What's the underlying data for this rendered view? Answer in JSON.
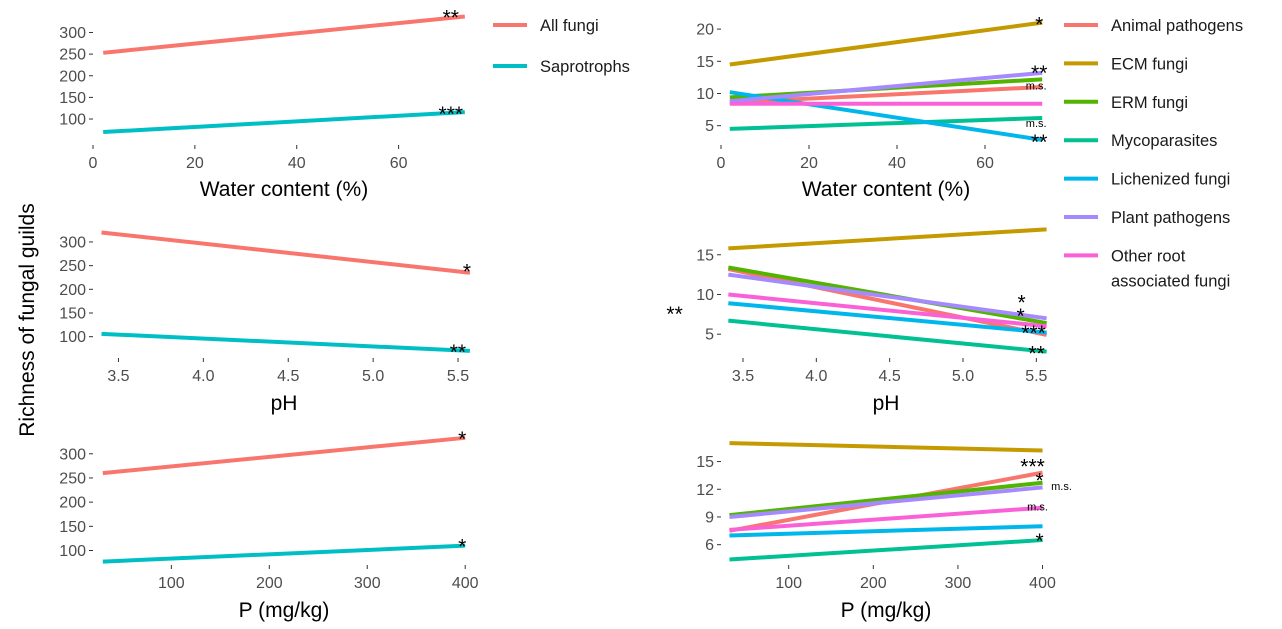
{
  "ylabel_shared": "Richness of fungal guilds",
  "colors": {
    "all_fungi": "#F8766D",
    "saprotrophs": "#00BFC4",
    "animal_pathogens": "#F8766D",
    "ecm": "#C49A00",
    "erm": "#53B400",
    "mycoparasites": "#00C094",
    "lichenized": "#00B6EB",
    "plant_pathogens": "#A58AFF",
    "other_root": "#FB61D7"
  },
  "legend_left": [
    {
      "label": "All fungi",
      "color": "#F8766D"
    },
    {
      "label": "Saprotrophs",
      "color": "#00BFC4"
    }
  ],
  "legend_right": [
    {
      "label": "Animal pathogens",
      "color": "#F8766D"
    },
    {
      "label": "ECM fungi",
      "color": "#C49A00"
    },
    {
      "label": "ERM fungi",
      "color": "#53B400"
    },
    {
      "label": "Mycoparasites",
      "color": "#00C094"
    },
    {
      "label": "Lichenized fungi",
      "color": "#00B6EB"
    },
    {
      "label": "Plant pathogens",
      "color": "#A58AFF"
    },
    {
      "label": "Other root",
      "label2": "associated fungi",
      "color": "#FB61D7"
    }
  ],
  "chart_data": [
    {
      "type": "line",
      "panel": "left-top",
      "xlabel": "Water content (%)",
      "xlim": [
        0,
        75
      ],
      "ylim": [
        40,
        345
      ],
      "xticks": [
        0,
        20,
        40,
        60
      ],
      "yticks": [
        100,
        150,
        200,
        250,
        300
      ],
      "series": [
        {
          "name": "All fungi",
          "color": "#F8766D",
          "x": [
            2,
            73
          ],
          "y": [
            253,
            337
          ],
          "sig": "**"
        },
        {
          "name": "Saprotrophs",
          "color": "#00BFC4",
          "x": [
            2,
            73
          ],
          "y": [
            70,
            116
          ],
          "sig": "***"
        }
      ]
    },
    {
      "type": "line",
      "panel": "right-top",
      "xlabel": "Water content (%)",
      "xlim": [
        0,
        75
      ],
      "ylim": [
        2,
        22.5
      ],
      "xticks": [
        0,
        20,
        40,
        60
      ],
      "yticks": [
        5,
        10,
        15,
        20
      ],
      "series": [
        {
          "name": "Animal pathogens",
          "color": "#F8766D",
          "x": [
            2,
            73
          ],
          "y": [
            8.6,
            11.0
          ],
          "sig": ""
        },
        {
          "name": "ECM fungi",
          "color": "#C49A00",
          "x": [
            2,
            73
          ],
          "y": [
            14.5,
            21.0
          ],
          "sig": "*"
        },
        {
          "name": "ERM fungi",
          "color": "#53B400",
          "x": [
            2,
            73
          ],
          "y": [
            9.4,
            12.2
          ],
          "sig": "m.s."
        },
        {
          "name": "Mycoparasites",
          "color": "#00C094",
          "x": [
            2,
            73
          ],
          "y": [
            4.5,
            6.2
          ],
          "sig": "m.s."
        },
        {
          "name": "Lichenized fungi",
          "color": "#00B6EB",
          "x": [
            2,
            73
          ],
          "y": [
            10.2,
            2.8
          ],
          "sig": "**"
        },
        {
          "name": "Plant pathogens",
          "color": "#A58AFF",
          "x": [
            2,
            73
          ],
          "y": [
            8.8,
            13.2
          ],
          "sig": "**"
        },
        {
          "name": "Other root associated fungi",
          "color": "#FB61D7",
          "x": [
            2,
            73
          ],
          "y": [
            8.4,
            8.4
          ],
          "sig": ""
        }
      ]
    },
    {
      "type": "line",
      "panel": "left-middle",
      "xlabel": "pH",
      "xlim": [
        3.35,
        5.6
      ],
      "ylim": [
        55,
        340
      ],
      "xticks": [
        3.5,
        4.0,
        4.5,
        5.0,
        5.5
      ],
      "yticks": [
        100,
        150,
        200,
        250,
        300
      ],
      "series": [
        {
          "name": "All fungi",
          "color": "#F8766D",
          "x": [
            3.4,
            5.57
          ],
          "y": [
            320,
            235
          ],
          "sig": "*"
        },
        {
          "name": "Saprotrophs",
          "color": "#00BFC4",
          "x": [
            3.4,
            5.57
          ],
          "y": [
            106,
            70
          ],
          "sig": "**"
        }
      ]
    },
    {
      "type": "line",
      "panel": "right-middle",
      "xlabel": "pH",
      "xlim": [
        3.35,
        5.6
      ],
      "ylim": [
        2,
        19
      ],
      "xticks": [
        3.5,
        4.0,
        4.5,
        5.0,
        5.5
      ],
      "yticks": [
        5,
        10,
        15
      ],
      "series": [
        {
          "name": "Animal pathogens",
          "color": "#F8766D",
          "x": [
            3.4,
            5.57
          ],
          "y": [
            13.2,
            4.9
          ],
          "sig": "***"
        },
        {
          "name": "ECM fungi",
          "color": "#C49A00",
          "x": [
            3.4,
            5.57
          ],
          "y": [
            15.8,
            18.2
          ],
          "sig": ""
        },
        {
          "name": "ERM fungi",
          "color": "#53B400",
          "x": [
            3.4,
            5.57
          ],
          "y": [
            13.4,
            6.4
          ],
          "sig": "**"
        },
        {
          "name": "Mycoparasites",
          "color": "#00C094",
          "x": [
            3.4,
            5.57
          ],
          "y": [
            6.7,
            2.8
          ],
          "sig": "**"
        },
        {
          "name": "Lichenized fungi",
          "color": "#00B6EB",
          "x": [
            3.4,
            5.57
          ],
          "y": [
            8.9,
            5.2
          ],
          "sig": ""
        },
        {
          "name": "Plant pathogens",
          "color": "#A58AFF",
          "x": [
            3.4,
            5.57
          ],
          "y": [
            12.5,
            7.0
          ],
          "sig": "*"
        },
        {
          "name": "Other root associated fungi",
          "color": "#FB61D7",
          "x": [
            3.4,
            5.57
          ],
          "y": [
            10.0,
            6.0
          ],
          "sig": "*"
        }
      ]
    },
    {
      "type": "line",
      "panel": "left-bottom",
      "xlabel": "P (mg/kg)",
      "xlim": [
        20,
        410
      ],
      "ylim": [
        70,
        345
      ],
      "xticks": [
        100,
        200,
        300,
        400
      ],
      "yticks": [
        100,
        150,
        200,
        250,
        300
      ],
      "series": [
        {
          "name": "All fungi",
          "color": "#F8766D",
          "x": [
            30,
            400
          ],
          "y": [
            260,
            333
          ],
          "sig": "*"
        },
        {
          "name": "Saprotrophs",
          "color": "#00BFC4",
          "x": [
            30,
            400
          ],
          "y": [
            77,
            110
          ],
          "sig": "*"
        }
      ]
    },
    {
      "type": "line",
      "panel": "right-bottom",
      "xlabel": "P (mg/kg)",
      "xlim": [
        20,
        410
      ],
      "ylim": [
        3.8,
        18.2
      ],
      "xticks": [
        100,
        200,
        300,
        400
      ],
      "yticks": [
        6,
        9,
        12,
        15
      ],
      "series": [
        {
          "name": "Animal pathogens",
          "color": "#F8766D",
          "x": [
            30,
            400
          ],
          "y": [
            7.5,
            13.8
          ],
          "sig": "***"
        },
        {
          "name": "ECM fungi",
          "color": "#C49A00",
          "x": [
            30,
            400
          ],
          "y": [
            17.0,
            16.2
          ],
          "sig": ""
        },
        {
          "name": "ERM fungi",
          "color": "#53B400",
          "x": [
            30,
            400
          ],
          "y": [
            9.2,
            12.7
          ],
          "sig": "m.s."
        },
        {
          "name": "Mycoparasites",
          "color": "#00C094",
          "x": [
            30,
            400
          ],
          "y": [
            4.4,
            6.5
          ],
          "sig": "*"
        },
        {
          "name": "Lichenized fungi",
          "color": "#00B6EB",
          "x": [
            30,
            400
          ],
          "y": [
            7.0,
            8.0
          ],
          "sig": ""
        },
        {
          "name": "Plant pathogens",
          "color": "#A58AFF",
          "x": [
            30,
            400
          ],
          "y": [
            9.0,
            12.2
          ],
          "sig": "*"
        },
        {
          "name": "Other root associated fungi",
          "color": "#FB61D7",
          "x": [
            30,
            400
          ],
          "y": [
            7.6,
            10.0
          ],
          "sig": "m.s."
        }
      ]
    }
  ]
}
